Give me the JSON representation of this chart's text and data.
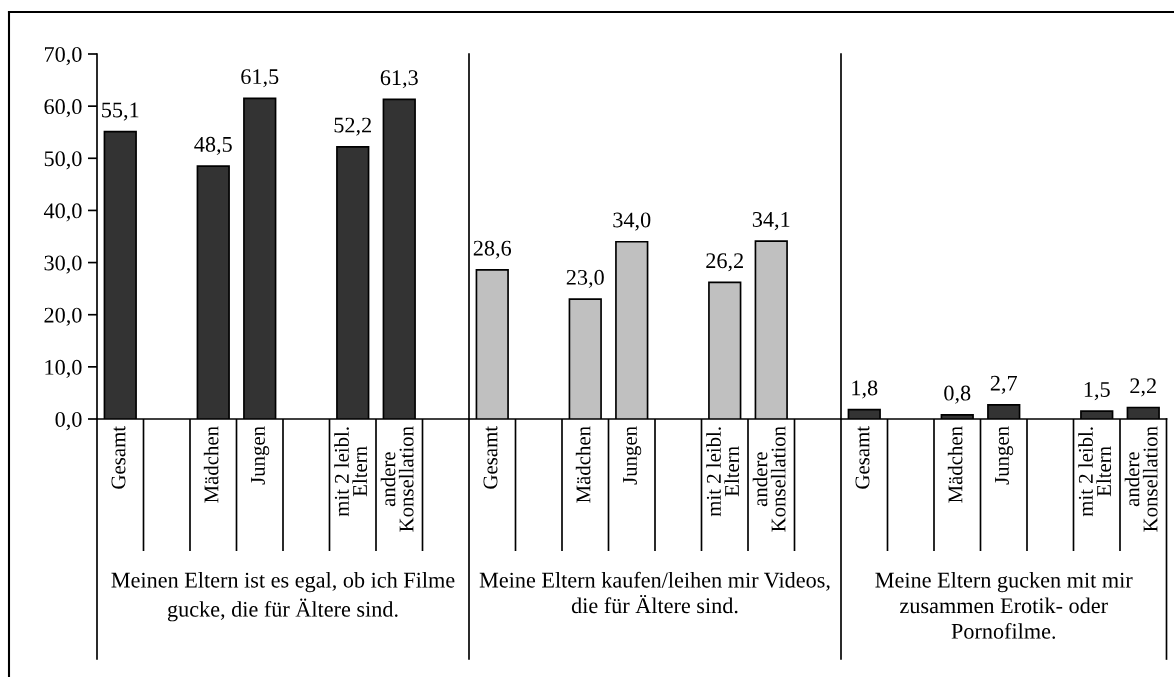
{
  "chart_data": [
    {
      "type": "bar",
      "categories": [
        "Gesamt",
        null,
        "Mädchen",
        "Jungen",
        null,
        "mit 2 leibl.\nEltern",
        "andere\nKonsellation",
        null
      ],
      "values": [
        55.1,
        null,
        48.5,
        61.5,
        null,
        52.2,
        61.3,
        null
      ],
      "value_labels": [
        "55,1",
        null,
        "48,5",
        "61,5",
        null,
        "52,2",
        "61,3",
        null
      ],
      "color": "#333333",
      "xlabel": "Meinen Eltern ist es egal, ob ich Filme\ngucke, die für Ältere sind.",
      "ylim": [
        0,
        70
      ],
      "yticks": [
        {
          "value": 0,
          "label": "0,0"
        },
        {
          "value": 10,
          "label": "10,0"
        },
        {
          "value": 20,
          "label": "20,0"
        },
        {
          "value": 30,
          "label": "30,0"
        },
        {
          "value": 40,
          "label": "40,0"
        },
        {
          "value": 50,
          "label": "50,0"
        },
        {
          "value": 60,
          "label": "60,0"
        },
        {
          "value": 70,
          "label": "70,0"
        }
      ]
    },
    {
      "type": "bar",
      "categories": [
        "Gesamt",
        null,
        "Mädchen",
        "Jungen",
        null,
        "mit 2 leibl.\nEltern",
        "andere\nKonsellation",
        null
      ],
      "values": [
        28.6,
        null,
        23.0,
        34.0,
        null,
        26.2,
        34.1,
        null
      ],
      "value_labels": [
        "28,6",
        null,
        "23,0",
        "34,0",
        null,
        "26,2",
        "34,1",
        null
      ],
      "color": "#c0c0c0",
      "xlabel": "Meine Eltern kaufen/leihen mir Videos,\ndie für Ältere sind.",
      "ylim": [
        0,
        70
      ],
      "tick_labels": "x"
    },
    {
      "type": "bar",
      "categories": [
        "Gesamt",
        null,
        "Mädchen",
        "Jungen",
        null,
        "mit 2 leibl.\nEltern",
        "andere\nKonsellation"
      ],
      "values": [
        1.8,
        null,
        0.8,
        2.7,
        null,
        1.5,
        2.2
      ],
      "value_labels": [
        "1,8",
        null,
        "0,8",
        "2,7",
        null,
        "1,5",
        "2,2"
      ],
      "color": "#333333",
      "xlabel": "Meine Eltern gucken mit mir\nzusammen Erotik- oder\nPornofilme.",
      "ylim": [
        0,
        70
      ],
      "tick_labels": "x"
    }
  ]
}
